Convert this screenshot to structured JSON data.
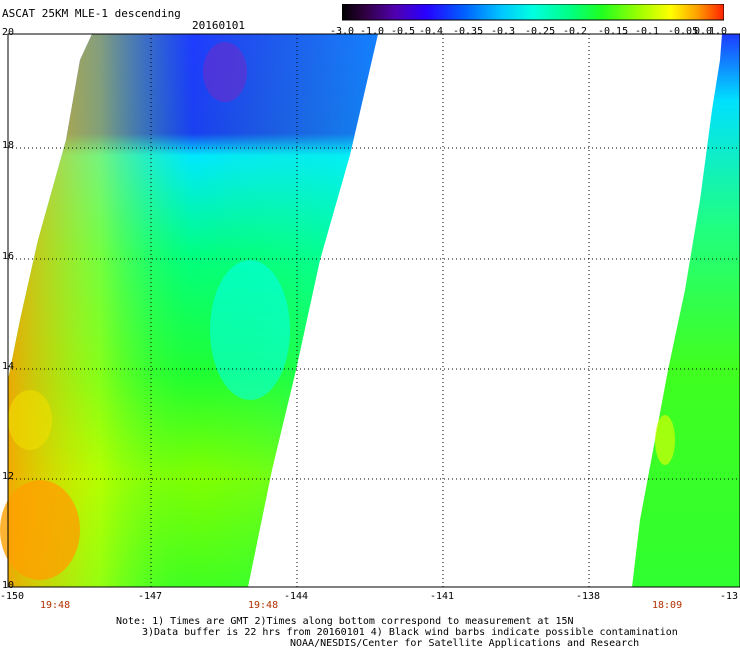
{
  "title": {
    "product": "ASCAT 25KM MLE-1 descending",
    "date": "20160101"
  },
  "colorbar": {
    "tick_labels": [
      "-3.0",
      "-1.0",
      "-0.5",
      "-0.4",
      "-0.35",
      "-0.3",
      "-0.25",
      "-0.2",
      "-0.15",
      "-0.1",
      "-0.05",
      "0.0",
      "1.0"
    ],
    "colors": [
      "#1a001a",
      "#400060",
      "#5a00c8",
      "#1e00ff",
      "#0050ff",
      "#00a0ff",
      "#00ffff",
      "#00ffa0",
      "#00ff40",
      "#60ff00",
      "#e0ff00",
      "#ffa000",
      "#ff2000"
    ]
  },
  "map": {
    "lat_labels": [
      "20",
      "18",
      "16",
      "14",
      "12",
      "10"
    ],
    "lon_labels": [
      "-150",
      "-147",
      "-144",
      "-141",
      "-138",
      "-13"
    ],
    "lat_range": [
      10,
      20
    ],
    "lon_range": [
      -150,
      -135
    ],
    "pass_times": [
      "19:48",
      "19:48",
      "18:09"
    ],
    "swaths": [
      {
        "name": "swath-west",
        "description_colors": [
          "#1e3cff",
          "#00ffff",
          "#00ff40",
          "#ffa000"
        ]
      },
      {
        "name": "swath-east",
        "description_colors": [
          "#1e3cff",
          "#00ffff",
          "#00ff40"
        ]
      }
    ]
  },
  "notes": {
    "line1": "Note: 1) Times are GMT 2)Times along bottom correspond to measurement at 15N",
    "line2": "3)Data buffer is 22 hrs from 20160101 4) Black wind barbs indicate possible contamination",
    "line3": "NOAA/NESDIS/Center for Satellite Applications and Research"
  }
}
